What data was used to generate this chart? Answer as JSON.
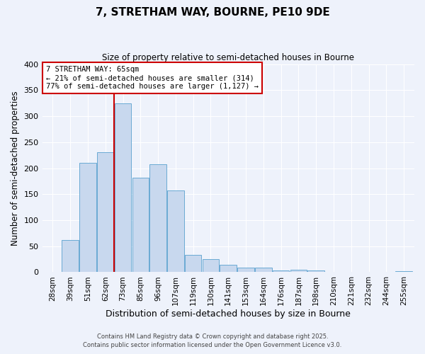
{
  "title": "7, STRETHAM WAY, BOURNE, PE10 9DE",
  "subtitle": "Size of property relative to semi-detached houses in Bourne",
  "xlabel": "Distribution of semi-detached houses by size in Bourne",
  "ylabel": "Number of semi-detached properties",
  "categories": [
    "28sqm",
    "39sqm",
    "51sqm",
    "62sqm",
    "73sqm",
    "85sqm",
    "96sqm",
    "107sqm",
    "119sqm",
    "130sqm",
    "141sqm",
    "153sqm",
    "164sqm",
    "176sqm",
    "187sqm",
    "198sqm",
    "210sqm",
    "221sqm",
    "232sqm",
    "244sqm",
    "255sqm"
  ],
  "values": [
    0,
    62,
    210,
    230,
    325,
    182,
    208,
    157,
    33,
    25,
    14,
    9,
    9,
    3,
    5,
    3,
    1,
    1,
    1,
    1,
    2
  ],
  "bar_color": "#c8d8ee",
  "bar_edge_color": "#6aaad4",
  "property_line_x": 3.5,
  "property_label": "7 STRETHAM WAY: 65sqm",
  "annotation_smaller": "← 21% of semi-detached houses are smaller (314)",
  "annotation_larger": "77% of semi-detached houses are larger (1,127) →",
  "annotation_box_color": "#ffffff",
  "annotation_box_edge": "#cc0000",
  "line_color": "#cc0000",
  "ylim": [
    0,
    400
  ],
  "yticks": [
    0,
    50,
    100,
    150,
    200,
    250,
    300,
    350,
    400
  ],
  "background_color": "#eef2fb",
  "grid_color": "#ffffff",
  "footer1": "Contains HM Land Registry data © Crown copyright and database right 2025.",
  "footer2": "Contains public sector information licensed under the Open Government Licence v3.0."
}
